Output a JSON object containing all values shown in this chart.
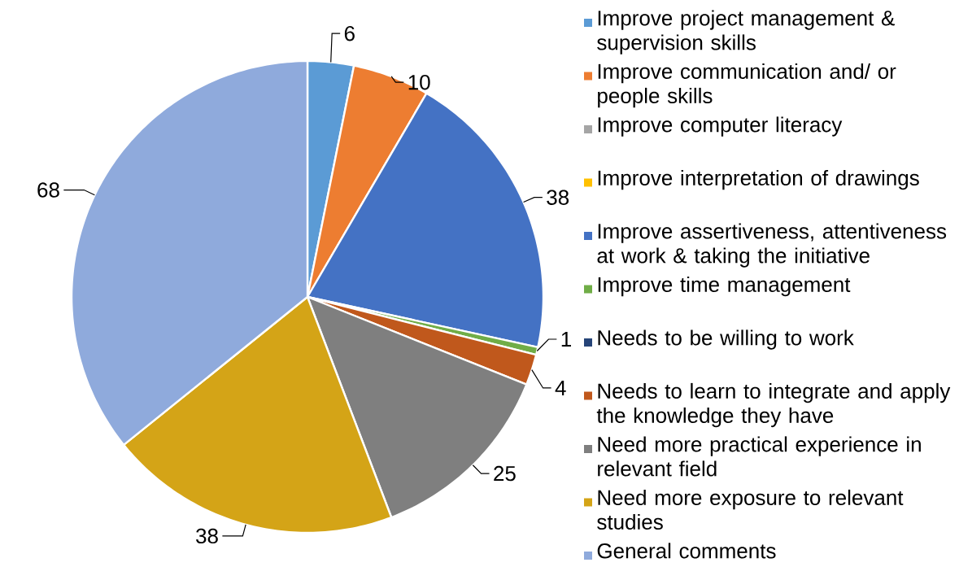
{
  "chart_data": {
    "type": "pie",
    "categories": [
      "Improve project management & supervision skills",
      "Improve communication and/ or people skills",
      "Improve computer literacy",
      "Improve interpretation of drawings",
      "Improve assertiveness, attentiveness at work & taking the initiative",
      "Improve time management",
      "Needs to be willing to work",
      "Needs to learn to integrate and apply the knowledge they have",
      "Need more practical experience in relevant field",
      "Need more exposure to relevant studies",
      "General comments"
    ],
    "values": [
      6,
      10,
      0,
      0,
      38,
      1,
      0,
      4,
      25,
      38,
      68
    ],
    "value_labels": [
      "6",
      "10",
      null,
      null,
      "38",
      "1",
      null,
      "4",
      "25",
      "38",
      "68"
    ],
    "colors": [
      "#5b9bd5",
      "#ed7d31",
      "#a5a5a5",
      "#ffc000",
      "#4472c4",
      "#70ad47",
      "#264478",
      "#c0581c",
      "#7f7f7f",
      "#d4a417",
      "#8faadc"
    ],
    "legend": "right"
  }
}
